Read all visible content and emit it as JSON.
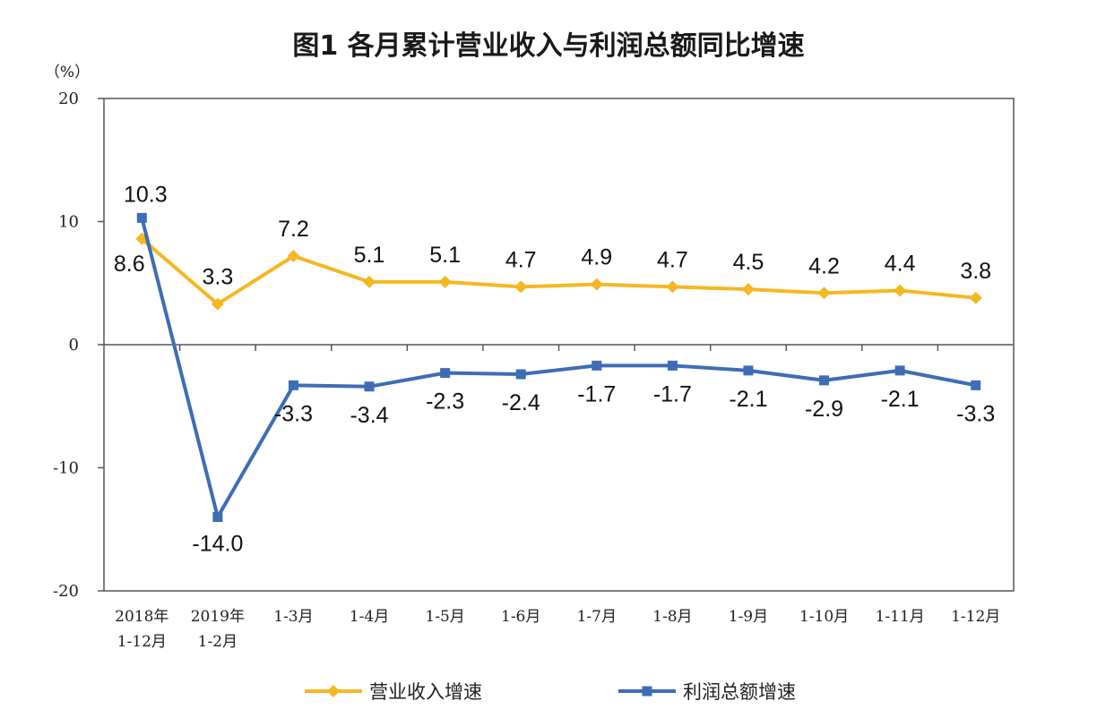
{
  "chart_data": {
    "type": "line",
    "title": "图1  各月累计营业收入与利润总额同比增速",
    "ylabel": "（%）",
    "xlabel": "",
    "ylim": [
      -20,
      20
    ],
    "yticks": [
      "20",
      "10",
      "0",
      "-10",
      "-20"
    ],
    "categories": [
      [
        "2018年",
        "1-12月"
      ],
      [
        "2019年",
        "1-2月"
      ],
      [
        "1-3月"
      ],
      [
        "1-4月"
      ],
      [
        "1-5月"
      ],
      [
        "1-6月"
      ],
      [
        "1-7月"
      ],
      [
        "1-8月"
      ],
      [
        "1-9月"
      ],
      [
        "1-10月"
      ],
      [
        "1-11月"
      ],
      [
        "1-12月"
      ]
    ],
    "series": [
      {
        "name": "营业收入增速",
        "color": "#f5b722",
        "marker": "diamond",
        "values": [
          8.6,
          3.3,
          7.2,
          5.1,
          5.1,
          4.7,
          4.9,
          4.7,
          4.5,
          4.2,
          4.4,
          3.8
        ],
        "labels": [
          "8.6",
          "3.3",
          "7.2",
          "5.1",
          "5.1",
          "4.7",
          "4.9",
          "4.7",
          "4.5",
          "4.2",
          "4.4",
          "3.8"
        ]
      },
      {
        "name": "利润总额增速",
        "color": "#3d6db5",
        "marker": "square",
        "values": [
          10.3,
          -14.0,
          -3.3,
          -3.4,
          -2.3,
          -2.4,
          -1.7,
          -1.7,
          -2.1,
          -2.9,
          -2.1,
          -3.3
        ],
        "labels": [
          "10.3",
          "-14.0",
          "-3.3",
          "-3.4",
          "-2.3",
          "-2.4",
          "-1.7",
          "-1.7",
          "-2.1",
          "-2.9",
          "-2.1",
          "-3.3"
        ]
      }
    ],
    "grid": false,
    "legend_position": "bottom"
  }
}
